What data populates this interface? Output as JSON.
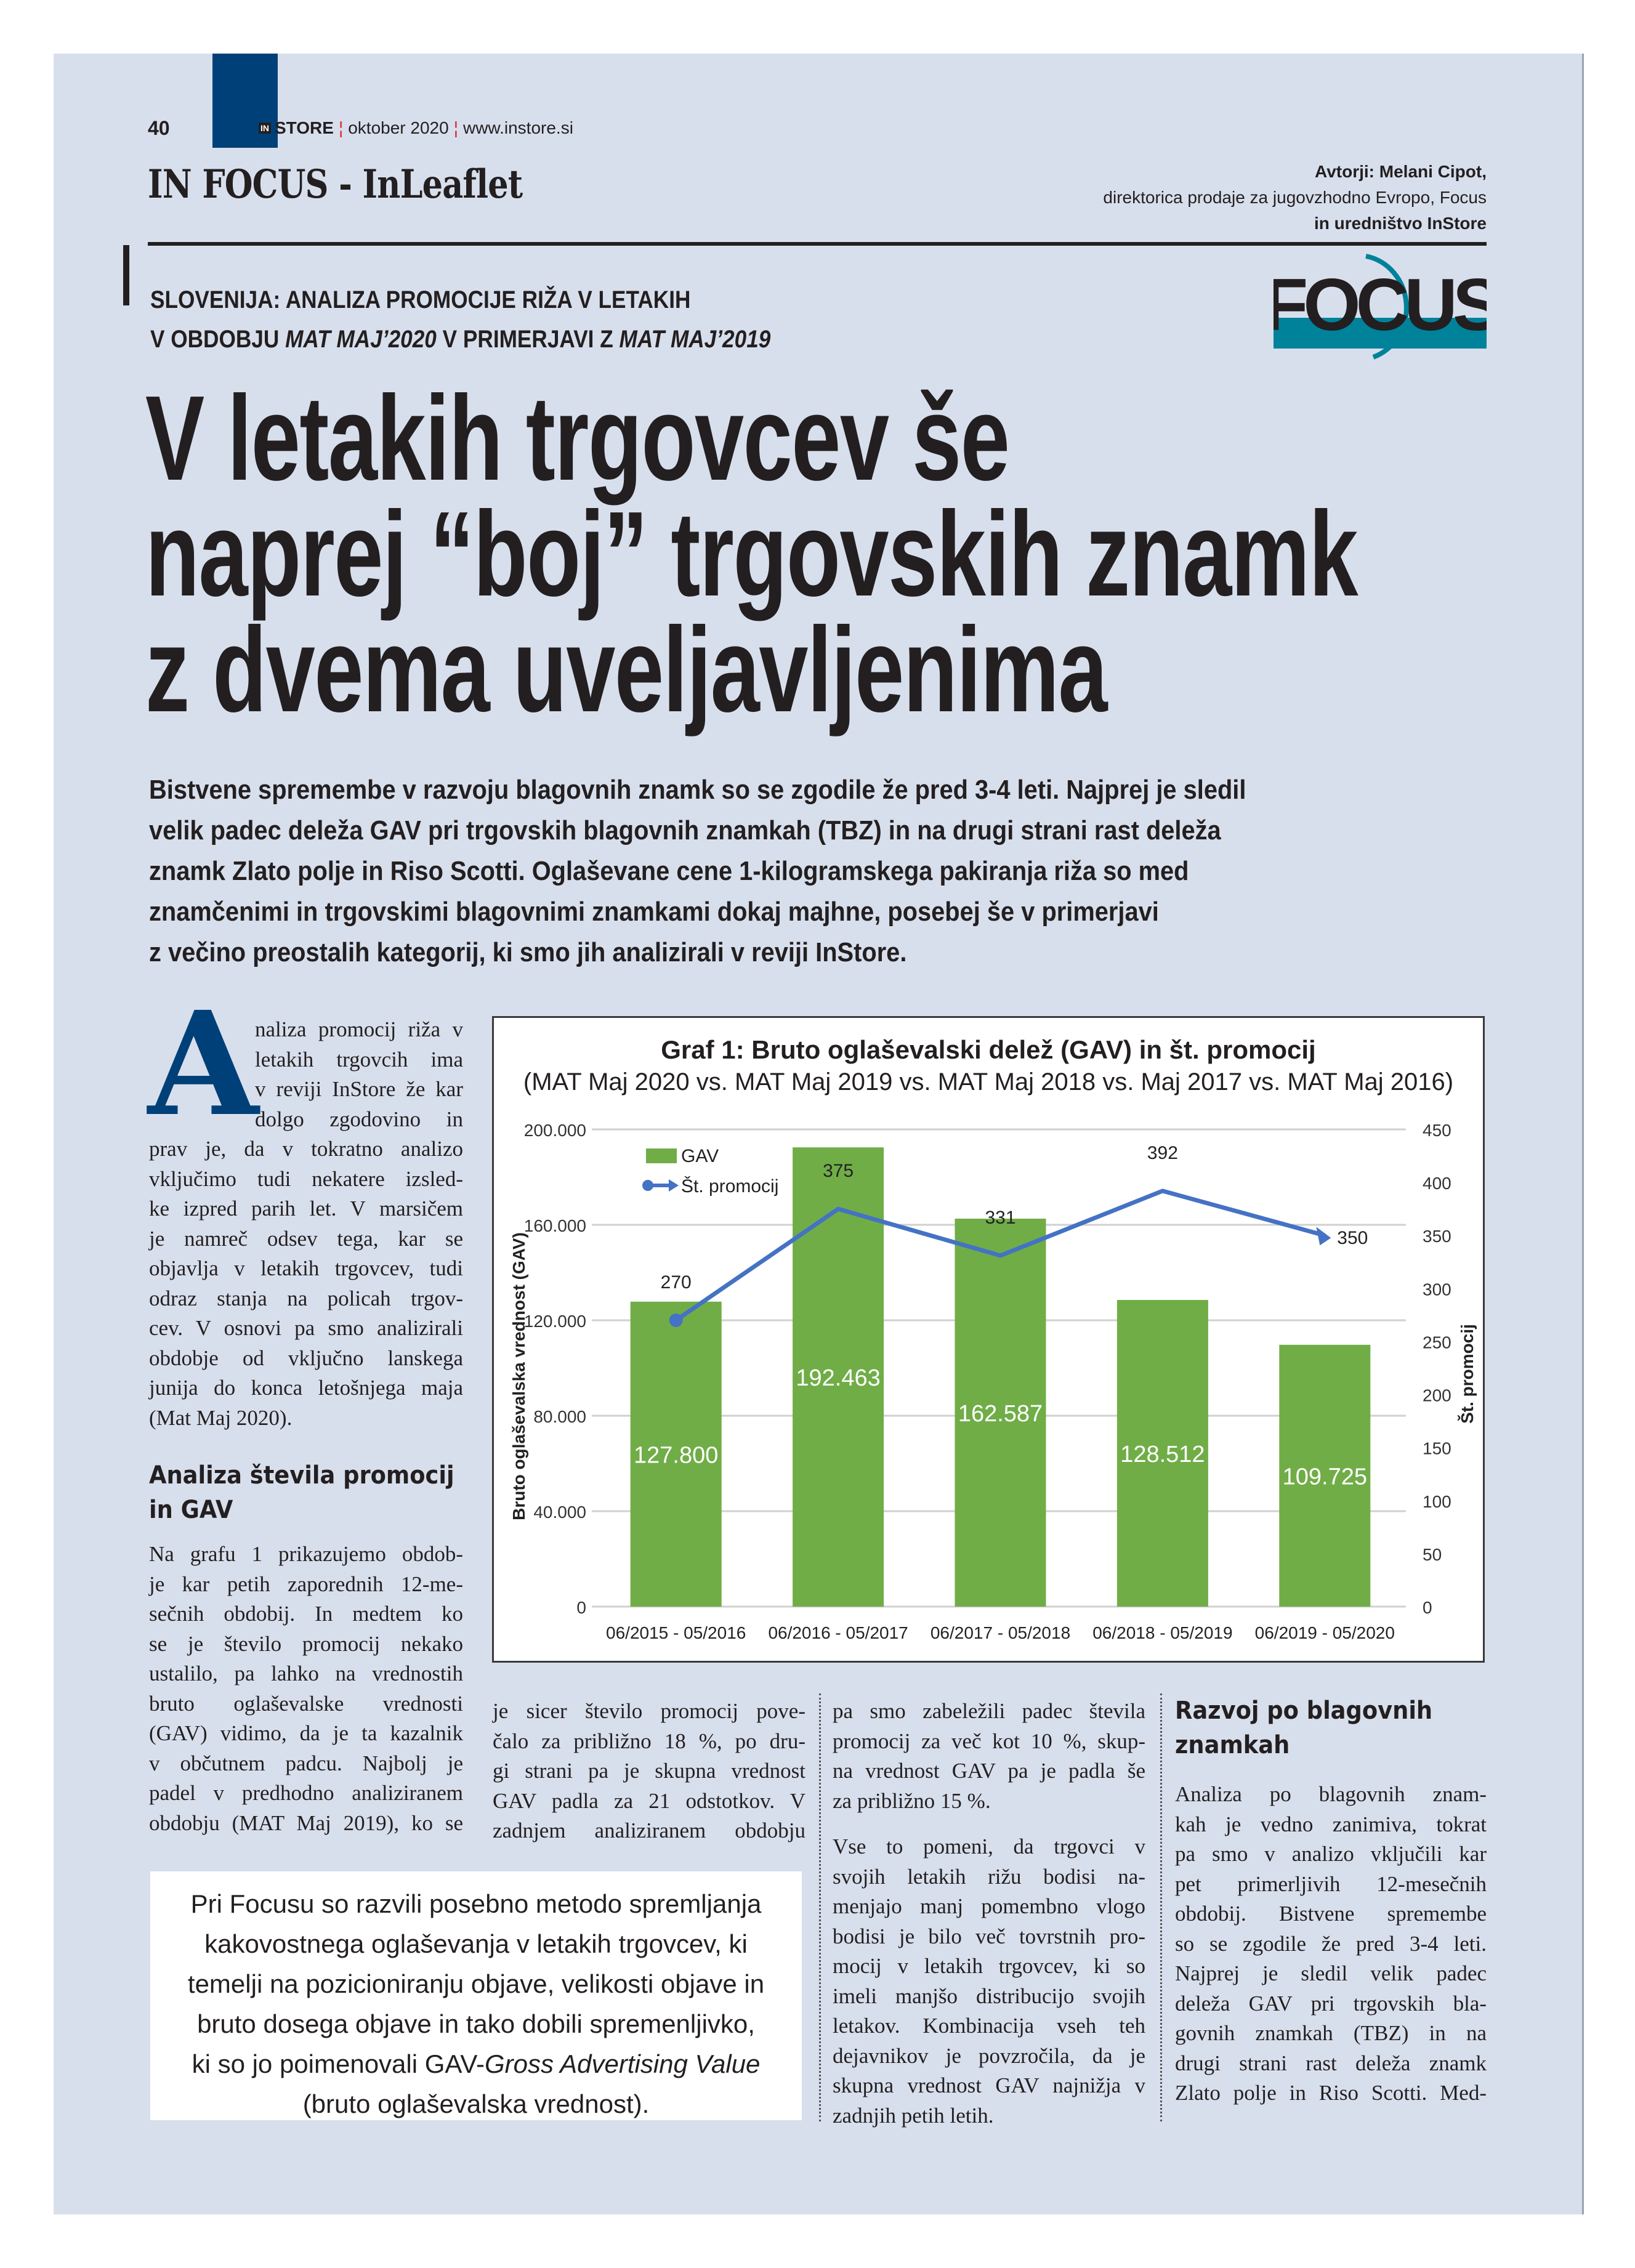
{
  "header": {
    "page_number": "40",
    "magazine_badge": "IN",
    "magazine": "STORE",
    "issue": "oktober 2020",
    "website": "www.instore.si",
    "section": "IN FOCUS - InLeaflet",
    "authors_line1": "Avtorji: Melani Cipot,",
    "authors_line2": "direktorica prodaje za jugovzhodno Evropo, Focus",
    "authors_line3": "in uredništvo InStore"
  },
  "logo": {
    "text": "FOCUS",
    "color": "#00829a"
  },
  "kicker": {
    "line1": "SLOVENIJA: ANALIZA PROMOCIJE RIŽA V LETAKIH",
    "line2_a": "V OBDOBJU ",
    "line2_b": "MAT MAJ’2020",
    "line2_c": " V PRIMERJAVI Z ",
    "line2_d": "MAT MAJ’2019"
  },
  "headline": [
    "V letakih trgovcev še",
    "naprej “boj” trgovskih znamk",
    "z dvema uveljavljenima"
  ],
  "lead": [
    "Bistvene spremembe v razvoju blagovnih znamk so se zgodile že pred 3-4 leti. Najprej je sledil",
    "velik padec deleža GAV pri trgovskih blagovnih znamkah (TBZ) in na drugi strani rast deleža",
    "znamk Zlato polje in Riso Scotti. Oglaševane cene 1-kilogramskega pakiranja riža so med",
    "znamčenimi in trgovskimi blagovnimi znamkami dokaj majhne, posebej še v primerjavi",
    "z večino preostalih kategorij, ki smo jih analizirali v reviji InStore."
  ],
  "article": {
    "dropcap": "A",
    "intro_indented": [
      "naliza promocij riža v",
      "letakih trgovcih ima",
      "v reviji InStore že kar",
      "dolgo zgodovino in"
    ],
    "intro": [
      "prav je, da v tokratno analizo",
      "vključimo tudi nekatere izsled-",
      "ke izpred parih let. V marsičem",
      "je namreč odsev tega, kar se",
      "objavlja v letakih trgovcev, tudi",
      "odraz stanja na policah trgov-",
      "cev. V osnovi pa smo analizirali",
      "obdobje od vključno lanskega",
      "junija do konca letošnjega maja",
      "(Mat Maj 2020)."
    ],
    "heading1": [
      "Analiza števila promocij",
      "in GAV"
    ],
    "para1": [
      "Na grafu 1 prikazujemo obdob-",
      "je kar petih zaporednih 12-me-",
      "sečnih obdobij. In medtem ko",
      "se je število promocij nekako",
      "ustalilo, pa lahko na vrednostih",
      "bruto oglaševalske vrednosti",
      "(GAV) vidimo, da je ta kazalnik",
      "v občutnem padcu. Najbolj je",
      "padel v predhodno analiziranem",
      "obdobju (MAT Maj 2019), ko se"
    ],
    "col2": [
      "je sicer število promocij pove-",
      "čalo za približno 18 %, po dru-",
      "gi strani pa je skupna vrednost",
      "GAV padla za 21 odstotkov. V",
      "zadnjem analiziranem obdobju"
    ],
    "col3_p1": [
      "pa smo zabeležili padec števila",
      "promocij za več kot 10 %, skup-",
      "na vrednost GAV pa je padla še",
      "za približno 15 %."
    ],
    "col3_p2": [
      "Vse to pomeni, da trgovci v",
      "svojih letakih rižu bodisi na-",
      "menjajo manj pomembno vlogo",
      "bodisi je bilo več tovrstnih pro-",
      "mocij v letakih trgovcev, ki so",
      "imeli manjšo distribucijo svojih",
      "letakov. Kombinacija vseh teh",
      "dejavnikov je povzročila, da je",
      "skupna vrednost GAV najnižja v",
      "zadnjih petih letih."
    ],
    "heading2": [
      "Razvoj po blagovnih",
      "znamkah"
    ],
    "col4": [
      "Analiza po blagovnih znam-",
      "kah je vedno zanimiva, tokrat",
      "pa smo v analizo vključili kar",
      "pet primerljivih 12-mesečnih",
      "obdobij. Bistvene spremembe",
      "so se zgodile že pred 3-4 leti.",
      "Najprej je sledil velik padec",
      "deleža GAV pri trgovskih bla-",
      "govnih znamkah (TBZ) in na",
      "drugi strani rast deleža znamk",
      "Zlato polje in Riso Scotti. Med-"
    ]
  },
  "pullquote": {
    "lines": [
      "Pri Focusu so razvili posebno metodo spremljanja",
      "kakovostnega oglaševanja v letakih trgovcev, ki",
      "temelji na pozicioniranju objave, velikosti objave in",
      "bruto dosega objave in tako dobili spremenljivko,"
    ],
    "line5_a": "ki so jo poimenovali GAV-",
    "line5_b": "Gross Advertising Value",
    "line6": "(bruto oglaševalska vrednost)."
  },
  "chart_data": {
    "type": "bar+line",
    "title": "Graf 1: Bruto oglaševalski delež (GAV) in št. promocij",
    "subtitle": "(MAT Maj 2020 vs. MAT Maj 2019 vs. MAT Maj 2018 vs. Maj 2017 vs. MAT Maj 2016)",
    "categories": [
      "06/2015 - 05/2016",
      "06/2016 - 05/2017",
      "06/2017 - 05/2018",
      "06/2018 - 05/2019",
      "06/2019 - 05/2020"
    ],
    "series": [
      {
        "name": "GAV",
        "type": "bar",
        "axis": "left",
        "color": "#70ad47",
        "values": [
          127800,
          192463,
          162587,
          128512,
          109725
        ],
        "labels": [
          "127.800",
          "192.463",
          "162.587",
          "128.512",
          "109.725"
        ]
      },
      {
        "name": "Št. promocij",
        "type": "line",
        "axis": "right",
        "color": "#4472c4",
        "values": [
          270,
          375,
          331,
          392,
          350
        ],
        "labels": [
          "270",
          "375",
          "331",
          "392",
          "350"
        ]
      }
    ],
    "ylabel": "Bruto oglaševalska vrednost (GAV)",
    "y2label": "Št. promocij",
    "ylim": [
      0,
      200000
    ],
    "y2lim": [
      0,
      450
    ],
    "yticks": [
      "0",
      "40.000",
      "80.000",
      "120.000",
      "160.000",
      "200.000"
    ],
    "y2ticks": [
      "0",
      "50",
      "100",
      "150",
      "200",
      "250",
      "300",
      "350",
      "400",
      "450"
    ],
    "grid": true,
    "legend": "top-left"
  }
}
